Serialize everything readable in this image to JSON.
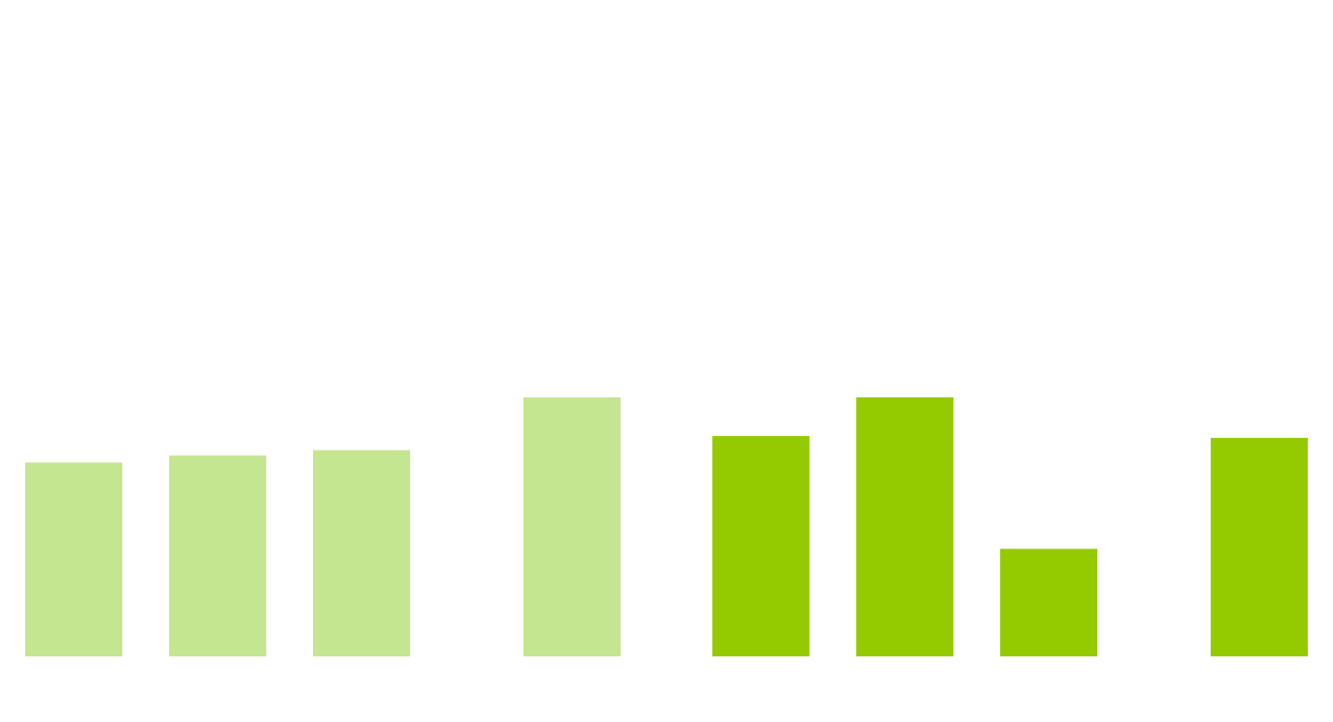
{
  "chart_data": {
    "type": "bar",
    "title": "",
    "xlabel": "",
    "ylabel": "",
    "grid": false,
    "legend": "none",
    "ylim": [
      0,
      300
    ],
    "categories": [
      "",
      "",
      "",
      "",
      "",
      "",
      "",
      ""
    ],
    "values": [
      220,
      228,
      234,
      294,
      250,
      294,
      122,
      248
    ],
    "colors": {
      "group_a": "#c5e690",
      "group_b": "#94cb00"
    },
    "bar_groups": [
      "group_a",
      "group_a",
      "group_a",
      "group_a",
      "group_b",
      "group_b",
      "group_b",
      "group_b"
    ]
  }
}
